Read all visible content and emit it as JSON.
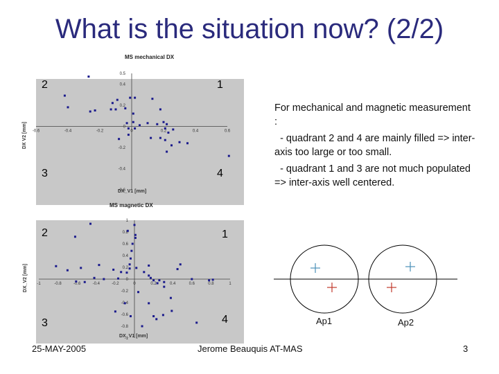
{
  "slide": {
    "title": "What is the situation now? (2/2)",
    "text": {
      "line1": "For mechanical and magnetic measurement :",
      "line2": "- quadrant 2 and 4 are mainly filled => inter-axis too large or too small.",
      "line3": "- quadrant 1 and 3 are not much populated => inter-axis well centered."
    },
    "diagram": {
      "ap1_label": "Ap1",
      "ap2_label": "Ap2",
      "blue_marker_color": "#4a90b8",
      "red_marker_color": "#c0392b"
    },
    "footer": {
      "date": "25-MAY-2005",
      "author": "Jerome Beauquis AT-MAS",
      "page": "3"
    }
  },
  "chart_data": [
    {
      "type": "scatter",
      "title": "MS mechanical DX",
      "xlabel": "DX_V1 [mm]",
      "ylabel": "DX V2 [mm]",
      "xlim": [
        -0.6,
        0.6
      ],
      "ylim": [
        -0.6,
        0.5
      ],
      "x_ticks": [
        "-0.6",
        "-0.4",
        "-0.2",
        "0",
        "0.2",
        "0.4",
        "0.6"
      ],
      "y_ticks": [
        "0.5",
        "0.4",
        "0.2",
        "0",
        "-0.2",
        "-0.4",
        "-0.6"
      ],
      "quadrant_labels": [
        "2",
        "1",
        "3",
        "4"
      ],
      "marker_color": "#1a1a8c",
      "points": [
        [
          -0.27,
          0.47
        ],
        [
          -0.42,
          0.29
        ],
        [
          -0.4,
          0.18
        ],
        [
          -0.26,
          0.14
        ],
        [
          -0.23,
          0.15
        ],
        [
          -0.12,
          0.22
        ],
        [
          -0.13,
          0.16
        ],
        [
          -0.1,
          0.16
        ],
        [
          -0.09,
          0.25
        ],
        [
          -0.04,
          0.17
        ],
        [
          -0.01,
          0.27
        ],
        [
          0.02,
          0.27
        ],
        [
          0.01,
          0.12
        ],
        [
          0.13,
          0.26
        ],
        [
          0.18,
          0.16
        ],
        [
          0.2,
          0.04
        ],
        [
          0.22,
          0.02
        ],
        [
          0.16,
          0.02
        ],
        [
          0.1,
          0.03
        ],
        [
          0.05,
          0.01
        ],
        [
          0.01,
          0.04
        ],
        [
          -0.02,
          -0.02
        ],
        [
          -0.03,
          0.03
        ],
        [
          0.02,
          -0.02
        ],
        [
          -0.02,
          -0.08
        ],
        [
          -0.08,
          -0.12
        ],
        [
          0.12,
          -0.11
        ],
        [
          0.18,
          -0.11
        ],
        [
          0.21,
          -0.02
        ],
        [
          0.23,
          -0.06
        ],
        [
          0.26,
          -0.03
        ],
        [
          0.21,
          -0.13
        ],
        [
          0.25,
          -0.18
        ],
        [
          0.22,
          -0.24
        ],
        [
          0.3,
          -0.15
        ],
        [
          0.35,
          -0.16
        ],
        [
          0.61,
          -0.28
        ]
      ]
    },
    {
      "type": "scatter",
      "title": "MS magnetic DX",
      "xlabel": "DX_V1 [mm]",
      "ylabel": "DX_V2 [mm]",
      "xlim": [
        -1,
        1
      ],
      "ylim": [
        -1,
        1
      ],
      "x_ticks": [
        "-1",
        "-0.8",
        "-0.6",
        "-0.4",
        "-0.2",
        "0",
        "0.2",
        "0.4",
        "0.6",
        "0.8",
        "1"
      ],
      "y_ticks": [
        "1",
        "0.8",
        "0.6",
        "0.4",
        "0.2",
        "0",
        "-0.2",
        "-0.4",
        "-0.6",
        "-0.8",
        "-1"
      ],
      "quadrant_labels": [
        "2",
        "1",
        "3",
        "4"
      ],
      "marker_color": "#1a1a8c",
      "points": [
        [
          -0.46,
          0.94
        ],
        [
          -0.62,
          0.72
        ],
        [
          -0.82,
          0.22
        ],
        [
          -0.7,
          0.15
        ],
        [
          -0.56,
          0.19
        ],
        [
          -0.37,
          0.24
        ],
        [
          -0.42,
          0.02
        ],
        [
          -0.61,
          -0.04
        ],
        [
          -0.52,
          -0.05
        ],
        [
          -0.32,
          0.0
        ],
        [
          -0.22,
          0.16
        ],
        [
          -0.14,
          0.12
        ],
        [
          -0.17,
          0.01
        ],
        [
          -0.08,
          0.11
        ],
        [
          -0.05,
          0.18
        ],
        [
          -0.04,
          0.35
        ],
        [
          -0.03,
          0.48
        ],
        [
          -0.02,
          0.6
        ],
        [
          0.01,
          0.7
        ],
        [
          -0.07,
          0.82
        ],
        [
          0.0,
          0.92
        ],
        [
          0.01,
          0.75
        ],
        [
          -0.05,
          0.25
        ],
        [
          0.02,
          0.19
        ],
        [
          0.1,
          0.12
        ],
        [
          0.15,
          0.23
        ],
        [
          0.15,
          0.06
        ],
        [
          0.17,
          0.02
        ],
        [
          0.2,
          -0.02
        ],
        [
          0.26,
          -0.02
        ],
        [
          0.24,
          -0.07
        ],
        [
          0.31,
          -0.05
        ],
        [
          0.31,
          -0.13
        ],
        [
          0.45,
          0.17
        ],
        [
          0.48,
          0.25
        ],
        [
          0.6,
          0.0
        ],
        [
          0.78,
          -0.02
        ],
        [
          0.82,
          -0.01
        ],
        [
          0.38,
          -0.32
        ],
        [
          0.39,
          -0.54
        ],
        [
          0.3,
          -0.61
        ],
        [
          0.2,
          -0.63
        ],
        [
          0.23,
          -0.68
        ],
        [
          0.15,
          -0.41
        ],
        [
          0.04,
          -0.22
        ],
        [
          -0.1,
          -0.41
        ],
        [
          -0.2,
          -0.55
        ],
        [
          -0.04,
          -0.63
        ],
        [
          0.08,
          -0.8
        ],
        [
          0.65,
          -0.74
        ]
      ]
    }
  ]
}
